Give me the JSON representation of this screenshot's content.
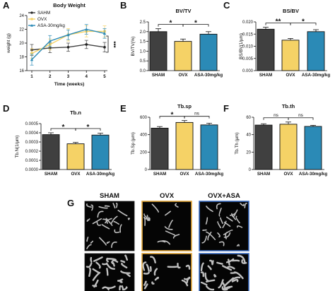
{
  "figure_labels": [
    "A",
    "B",
    "C",
    "D",
    "E",
    "F",
    "G"
  ],
  "colors": {
    "sham": "#404040",
    "ovx": "#f5d266",
    "asa": "#2b8ab6",
    "ovx_frame": "#e3a63a",
    "asa_frame": "#3d6fc4"
  },
  "microct": {
    "headers": [
      "SHAM",
      "OVX",
      "OVX+ASA"
    ]
  },
  "chart_data": [
    {
      "id": "A",
      "type": "line",
      "title": "Body Weight",
      "xlabel": "Time (weeks)",
      "ylabel": "weight (g)",
      "x": [
        1,
        2,
        3,
        4,
        5
      ],
      "ylim": [
        16,
        24
      ],
      "yticks": [
        16,
        18,
        20,
        22,
        24
      ],
      "legend_position": "top-left",
      "series": [
        {
          "name": "SAHM",
          "values": [
            19.0,
            19.3,
            19.4,
            19.8,
            19.4
          ],
          "err": [
            0.8,
            0.7,
            0.6,
            0.6,
            0.7
          ]
        },
        {
          "name": "OVX",
          "values": [
            18.5,
            19.8,
            21.2,
            21.7,
            21.7
          ],
          "err": [
            0.7,
            0.8,
            0.9,
            0.8,
            0.8
          ]
        },
        {
          "name": "ASA-30mg/kg",
          "values": [
            17.6,
            20.3,
            21.2,
            22.0,
            21.4
          ],
          "err": [
            0.8,
            0.8,
            0.7,
            0.7,
            0.7
          ]
        }
      ],
      "annotations": [
        "***"
      ]
    },
    {
      "id": "B",
      "type": "bar",
      "title": "BV/TV",
      "ylabel": "BV/TV(%)",
      "categories": [
        "SHAM",
        "OVX",
        "ASA-30mg/kg"
      ],
      "values": [
        2.0,
        1.5,
        1.87
      ],
      "err": [
        0.15,
        0.12,
        0.13
      ],
      "ylim": [
        0.0,
        2.5
      ],
      "yticks": [
        "0.0",
        "0.5",
        "1.0",
        "1.5",
        "2.0",
        "2.5"
      ],
      "sig": [
        {
          "from": 0,
          "to": 1,
          "label": "*"
        },
        {
          "from": 1,
          "to": 2,
          "label": "*"
        }
      ]
    },
    {
      "id": "C",
      "type": "bar",
      "title": "BS/BV",
      "ylabel": "BS/BV(1/µm)",
      "categories": [
        "SHAM",
        "OVX",
        "ASA-30mg/kg"
      ],
      "values": [
        0.017,
        0.0125,
        0.016
      ],
      "err": [
        0.0008,
        0.0007,
        0.0008
      ],
      "ylim": [
        0.0,
        0.02
      ],
      "yticks": [
        "0.000",
        "0.005",
        "0.010",
        "0.015",
        "0.020"
      ],
      "sig": [
        {
          "from": 0,
          "to": 1,
          "label": "**"
        },
        {
          "from": 1,
          "to": 2,
          "label": "*"
        }
      ]
    },
    {
      "id": "D",
      "type": "bar",
      "title": "Tb.n",
      "ylabel": "Tb.N(1/µm)",
      "categories": [
        "SHAM",
        "OVX",
        "ASA-30mg/kg"
      ],
      "values": [
        0.00038,
        0.00028,
        0.000375
      ],
      "err": [
        2e-05,
        1.5e-05,
        2e-05
      ],
      "ylim": [
        0.0,
        0.0005
      ],
      "yticks": [
        "0.0000",
        "0.0001",
        "0.0002",
        "0.0003",
        "0.0004",
        "0.0005"
      ],
      "sig": [
        {
          "from": 0,
          "to": 1,
          "label": "*"
        },
        {
          "from": 1,
          "to": 2,
          "label": "*"
        }
      ]
    },
    {
      "id": "E",
      "type": "bar",
      "title": "Tb.sp",
      "ylabel": "Tb.Sp (µm)",
      "categories": [
        "SHAM",
        "OVX",
        "ASA-30mg/kg"
      ],
      "values": [
        475,
        540,
        512
      ],
      "err": [
        18,
        22,
        20
      ],
      "ylim": [
        0,
        600
      ],
      "yticks": [
        "0",
        "200",
        "400",
        "600"
      ],
      "sig": [
        {
          "from": 0,
          "to": 1,
          "label": "*"
        },
        {
          "from": 1,
          "to": 2,
          "label": "ns"
        }
      ]
    },
    {
      "id": "F",
      "type": "bar",
      "title": "Tb.th",
      "ylabel": "Tb.Th (µm)",
      "categories": [
        "SHAM",
        "OVX",
        "ASA-30mg/kg"
      ],
      "values": [
        51,
        52,
        49.5
      ],
      "err": [
        1.5,
        2.5,
        1.2
      ],
      "ylim": [
        0,
        60
      ],
      "yticks": [
        "0",
        "20",
        "40",
        "60"
      ],
      "sig": [
        {
          "from": 0,
          "to": 1,
          "label": "ns"
        },
        {
          "from": 1,
          "to": 2,
          "label": "ns"
        }
      ]
    }
  ]
}
